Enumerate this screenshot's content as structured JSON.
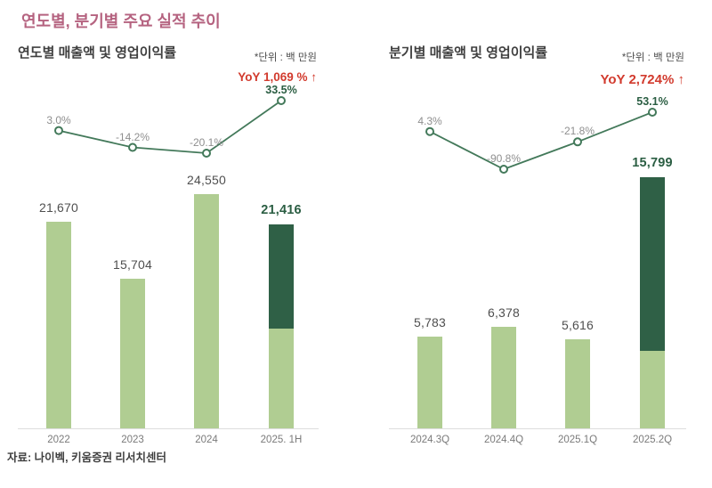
{
  "page": {
    "title": "연도별, 분기별 주요 실적 추이",
    "source": "자료: 나이벡, 키움증권 리서치센터"
  },
  "colors": {
    "bar_light": "#b0cd92",
    "bar_dark": "#2f6046",
    "line_green": "#43795a",
    "yoy_red": "#d23b2e",
    "title_pink": "#b56380",
    "label_gray": "#8f8f8f",
    "value_label": "#4f4f4f",
    "highlight_text": "#2b5e43",
    "axis_line": "#dedede",
    "tick_label": "#7a7a7a"
  },
  "chart_data": [
    {
      "type": "bar+line",
      "title": "연도별 매출액 및 영업이익률",
      "unit_note": "*단위 : 백 만원",
      "yoy_label": "YoY 1,069 % ↑",
      "categories": [
        "2022",
        "2023",
        "2024",
        "2025. 1H"
      ],
      "bar_series": {
        "name": "매출액",
        "values": [
          21670,
          15704,
          24550,
          21416
        ],
        "labels": [
          "21,670",
          "15,704",
          "24,550",
          "21,416"
        ]
      },
      "line_series": {
        "name": "영업이익률",
        "values": [
          3.0,
          -14.2,
          -20.1,
          33.5
        ],
        "labels": [
          "3.0%",
          "-14.2%",
          "-20.1%",
          "33.5%"
        ]
      },
      "highlight_index": 3,
      "highlight_base_ratio": 0.49,
      "grid": false,
      "legend": "none"
    },
    {
      "type": "bar+line",
      "title": "분기별 매출액 및 영업이익률",
      "unit_note": "*단위 : 백 만원",
      "yoy_label": "YoY 2,724% ↑",
      "categories": [
        "2024.3Q",
        "2024.4Q",
        "2025.1Q",
        "2025.2Q"
      ],
      "bar_series": {
        "name": "매출액",
        "values": [
          5783,
          6378,
          5616,
          15799
        ],
        "labels": [
          "5,783",
          "6,378",
          "5,616",
          "15,799"
        ]
      },
      "line_series": {
        "name": "영업이익률",
        "values": [
          4.3,
          -90.8,
          -21.8,
          53.1
        ],
        "labels": [
          "4.3%",
          "-90.8%",
          "-21.8%",
          "53.1%"
        ]
      },
      "highlight_index": 3,
      "highlight_base_ratio": 0.31,
      "grid": false,
      "legend": "none"
    }
  ]
}
